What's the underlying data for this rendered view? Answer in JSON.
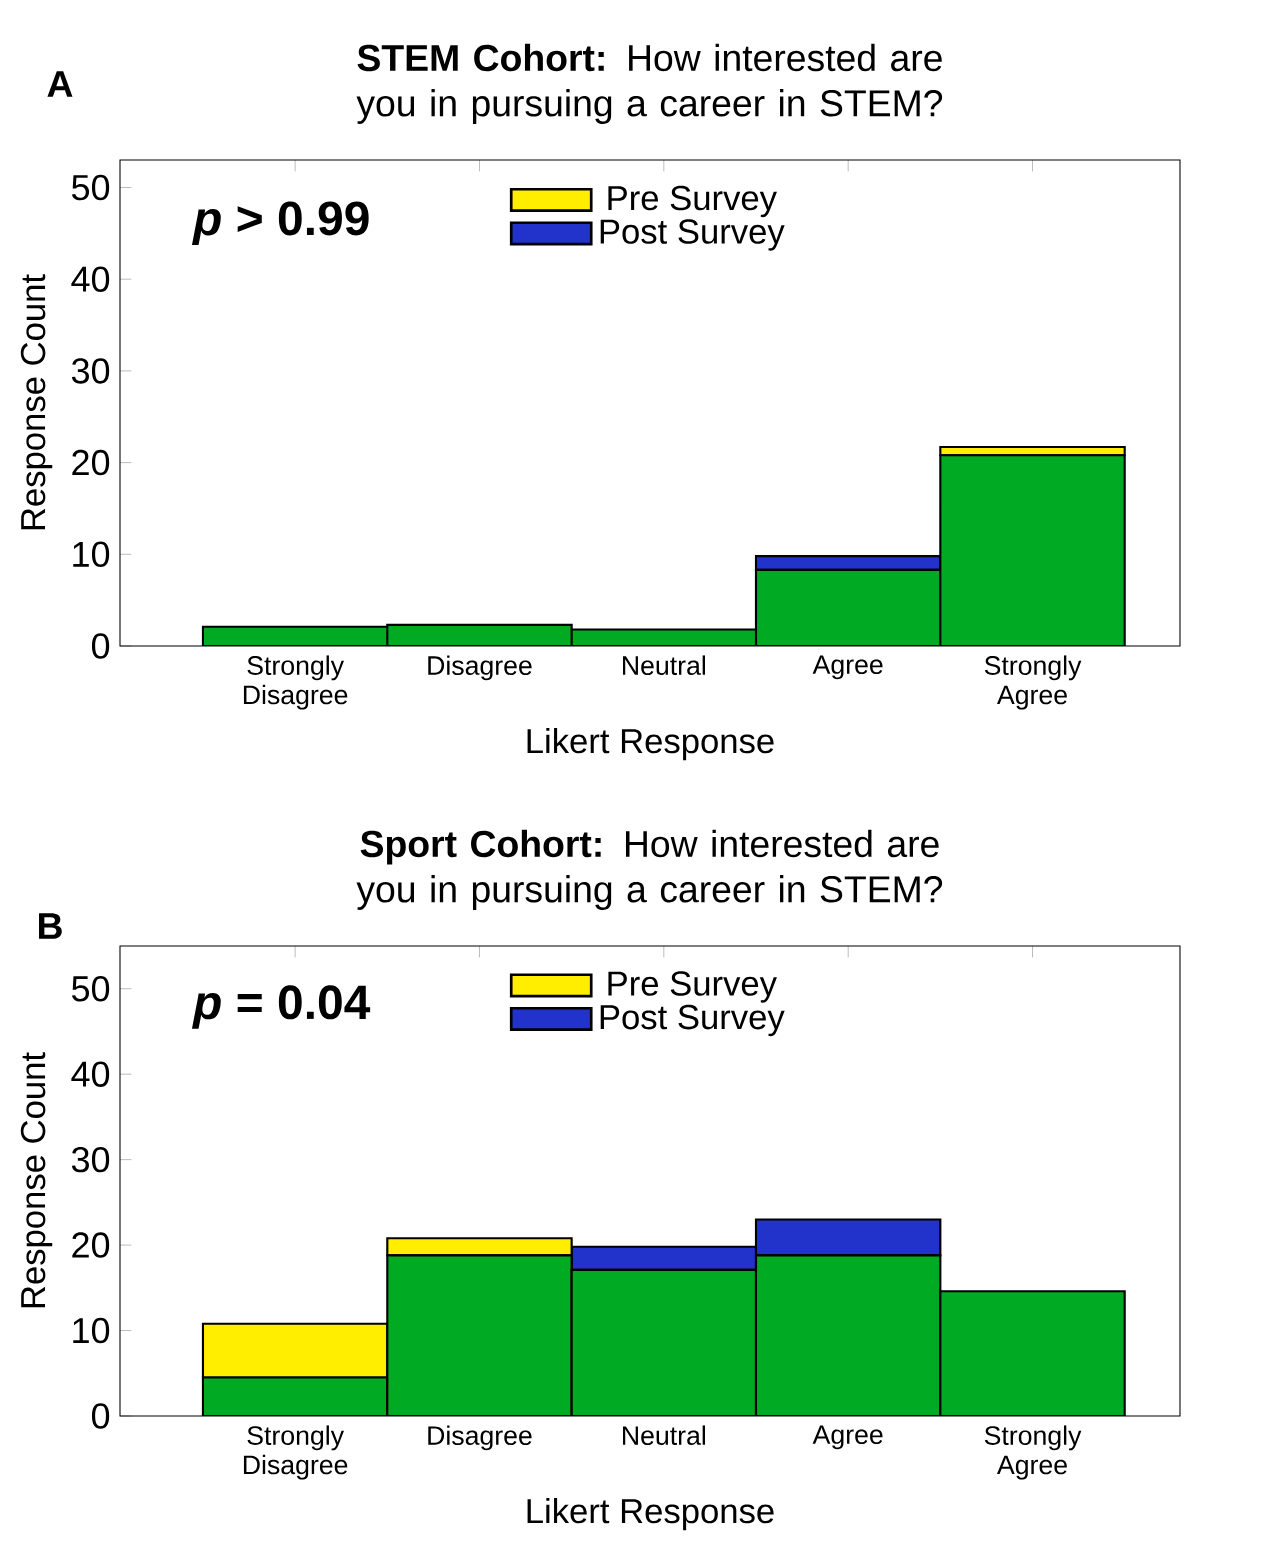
{
  "chart_data": [
    {
      "type": "bar",
      "stacked": true,
      "title": "**STEM Cohort:** How interested are you in pursuing a career in STEM?",
      "xlabel": "Likert Response",
      "ylabel": "Response Count",
      "categories": [
        "Strongly Disagree",
        "Disagree",
        "Neutral",
        "Agree",
        "Strongly Agree"
      ],
      "series": [
        {
          "color": "#00aa22",
          "values": [
            2.1,
            2.3,
            1.8,
            8.3,
            20.8
          ]
        },
        {
          "name": "Pre Survey",
          "color": "#ffee00",
          "values": [
            null,
            null,
            null,
            null,
            0.9
          ]
        },
        {
          "name": "Post Survey",
          "color": "#2233cc",
          "values": [
            null,
            null,
            null,
            1.5,
            null
          ]
        }
      ],
      "ylim": [
        0,
        53
      ],
      "yticks": [
        0,
        10,
        20,
        30,
        40,
        50
      ],
      "legend": "top",
      "annotations": [
        "A",
        "*p* > 0.99"
      ]
    },
    {
      "type": "bar",
      "stacked": true,
      "title": "**Sport Cohort:** How interested are you in pursuing a career in STEM?",
      "xlabel": "Likert Response",
      "ylabel": "Response Count",
      "categories": [
        "Strongly Disagree",
        "Disagree",
        "Neutral",
        "Agree",
        "Strongly Agree"
      ],
      "series": [
        {
          "color": "#00aa22",
          "values": [
            4.5,
            18.8,
            17.1,
            18.8,
            14.6
          ]
        },
        {
          "name": "Pre Survey",
          "color": "#ffee00",
          "values": [
            6.3,
            2.0,
            null,
            null,
            null
          ]
        },
        {
          "name": "Post Survey",
          "color": "#2233cc",
          "values": [
            null,
            null,
            2.7,
            4.2,
            null
          ]
        }
      ],
      "ylim": [
        0,
        55
      ],
      "yticks": [
        0,
        10,
        20,
        30,
        40,
        50
      ],
      "legend": "top",
      "annotations": [
        "B",
        "*p* = 0.04"
      ]
    }
  ]
}
